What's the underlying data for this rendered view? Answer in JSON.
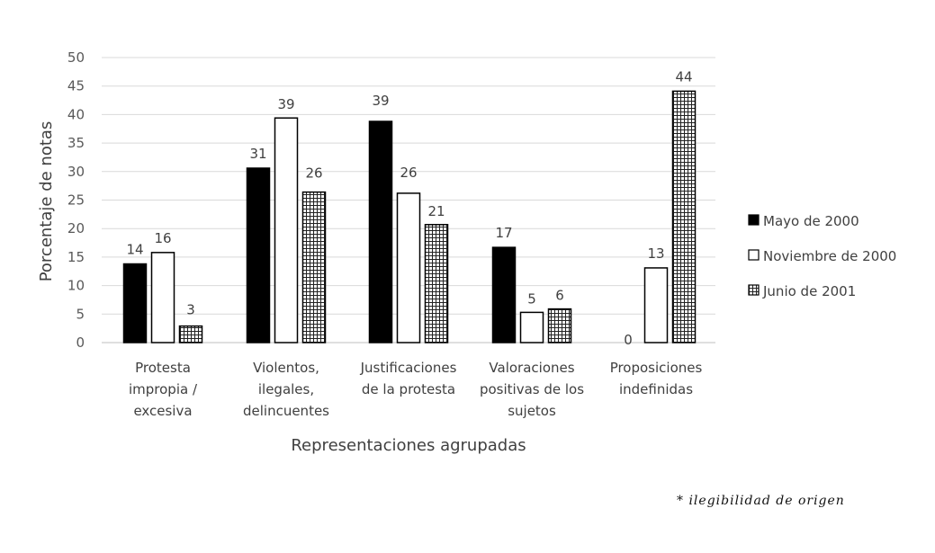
{
  "chart_data": {
    "type": "bar",
    "title": "",
    "xlabel": "Representaciones agrupadas",
    "ylabel": "Porcentaje de notas",
    "ylim": [
      0,
      50
    ],
    "yticks": [
      "0",
      "5",
      "10",
      "15",
      "20",
      "25",
      "30",
      "35",
      "40",
      "45",
      "50"
    ],
    "grid": true,
    "legend_position": "right",
    "categories": [
      [
        "Protesta",
        "impropia /",
        "excesiva"
      ],
      [
        "Violentos,",
        "ilegales,",
        "delincuentes"
      ],
      [
        "Justificaciones",
        "de la protesta"
      ],
      [
        "Valoraciones",
        "positivas de los",
        "sujetos"
      ],
      [
        "Proposiciones",
        "indefinidas"
      ]
    ],
    "series": [
      {
        "name": "Mayo de 2000",
        "fill": "#000000",
        "pattern": "solid",
        "values": [
          14,
          31,
          39,
          17,
          0
        ]
      },
      {
        "name": "Noviembre de 2000",
        "fill": "#ffffff",
        "pattern": "none",
        "values": [
          16,
          39,
          26,
          5,
          13
        ]
      },
      {
        "name": "Junio de 2001",
        "fill": "#ffffff",
        "pattern": "grid",
        "values": [
          3,
          26,
          21,
          6,
          44
        ]
      }
    ],
    "bar_heights_exact": [
      [
        13.8,
        30.6,
        38.8,
        16.7,
        0
      ],
      [
        15.8,
        39.4,
        26.2,
        5.3,
        13.1
      ],
      [
        2.9,
        26.4,
        20.7,
        5.9,
        44.1
      ]
    ]
  },
  "footnote": "* ilegibilidad de origen"
}
